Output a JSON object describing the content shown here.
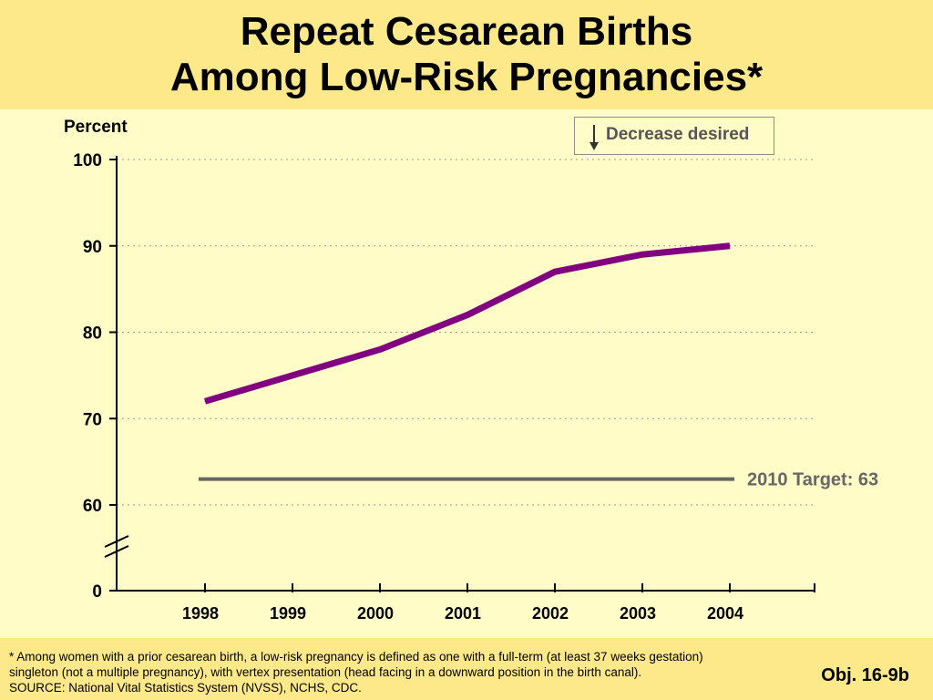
{
  "title": {
    "line1": "Repeat Cesarean Births",
    "line2": "Among Low-Risk Pregnancies*"
  },
  "legend": {
    "text": "Decrease desired",
    "icon": "down-arrow-icon"
  },
  "footnote": {
    "line1": "* Among women with a prior cesarean birth, a low-risk pregnancy is defined as one with a full-term (at least 37 weeks gestation)",
    "line2": "singleton (not a multiple pregnancy), with vertex presentation (head facing in a downward position in the birth canal).",
    "line3": "SOURCE:  National Vital Statistics System (NVSS), NCHS, CDC."
  },
  "objective": "Obj. 16-9b",
  "colors": {
    "series": "#800080",
    "target": "#666666",
    "header_band": "#fde98a",
    "background": "#fffcc8"
  },
  "chart_data": {
    "type": "line",
    "title": "Repeat Cesarean Births Among Low-Risk Pregnancies*",
    "ylabel": "Percent",
    "xlabel": "",
    "categories": [
      "1998",
      "1999",
      "2000",
      "2001",
      "2002",
      "2003",
      "2004"
    ],
    "series": [
      {
        "values": [
          72,
          75,
          78,
          82,
          87,
          89,
          90
        ]
      }
    ],
    "target": {
      "label": "2010 Target: 63",
      "value": 63
    },
    "y_ticks": [
      0,
      60,
      70,
      80,
      90,
      100
    ],
    "ylim": [
      0,
      100
    ],
    "axis_break": true,
    "grid": "horizontal dotted"
  }
}
